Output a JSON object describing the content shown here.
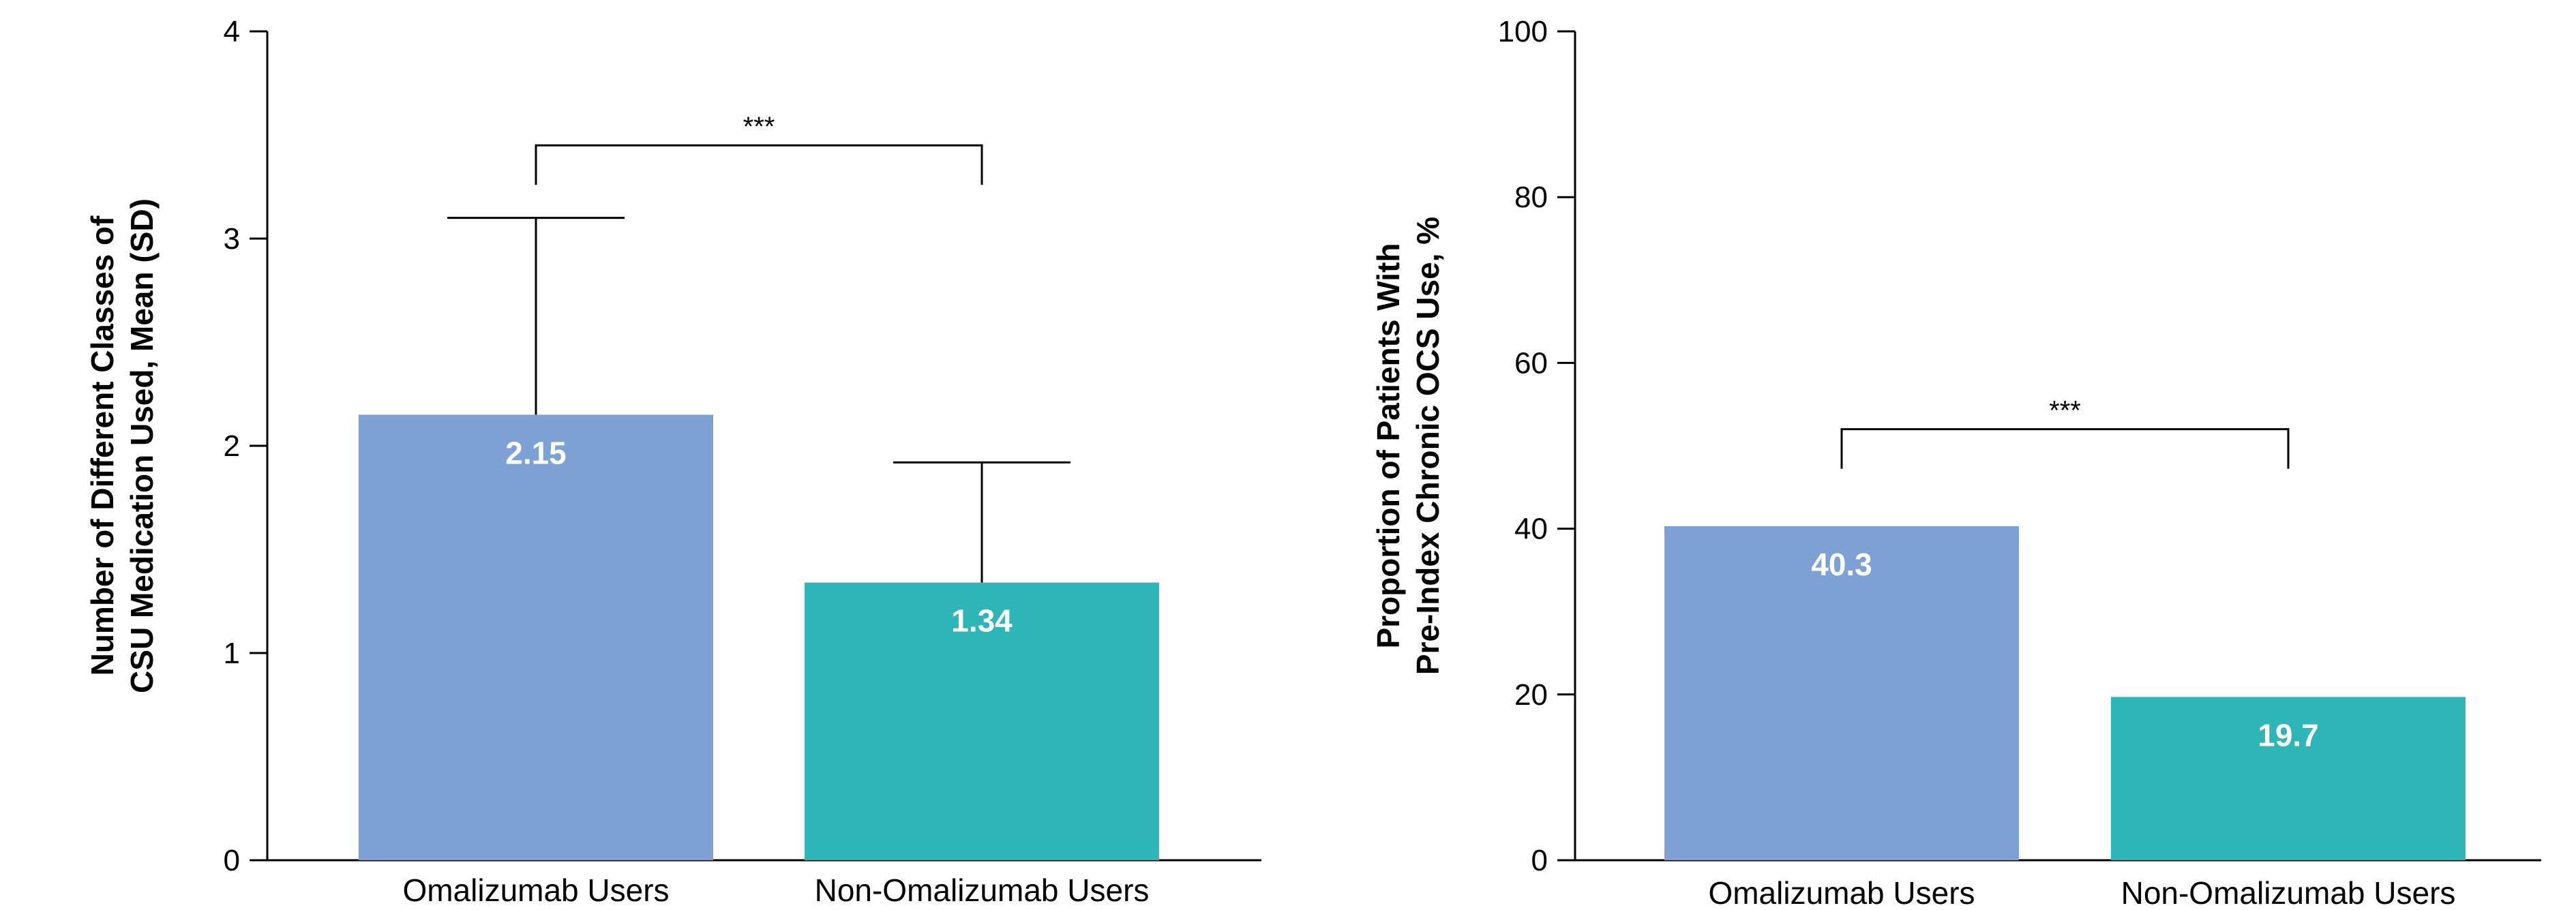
{
  "chart_data": [
    {
      "type": "bar",
      "categories": [
        "Omalizumab Users",
        "Non-Omalizumab Users"
      ],
      "values": [
        2.15,
        1.34
      ],
      "error_sd": [
        0.95,
        0.58
      ],
      "data_labels": [
        "2.15",
        "1.34"
      ],
      "colors": [
        "#7da1d4",
        "#2db5b7"
      ],
      "ylabel_lines": [
        "Number of Different Classes of",
        "CSU Medication Used, Mean (SD)"
      ],
      "ylim": [
        0,
        4
      ],
      "yticks": [
        0,
        1,
        2,
        3,
        4
      ],
      "ytick_labels": [
        "0",
        "1",
        "2",
        "3",
        "4"
      ],
      "significance": {
        "label": "***",
        "level": 3.45
      },
      "grid": false
    },
    {
      "type": "bar",
      "categories": [
        "Omalizumab Users",
        "Non-Omalizumab Users"
      ],
      "values": [
        40.3,
        19.7
      ],
      "data_labels": [
        "40.3",
        "19.7"
      ],
      "colors": [
        "#7da1d4",
        "#2db5b7"
      ],
      "ylabel_lines": [
        "Proportion of Patients With",
        "Pre-Index Chronic OCS Use, %"
      ],
      "ylim": [
        0,
        100
      ],
      "yticks": [
        0,
        20,
        40,
        60,
        80,
        100
      ],
      "ytick_labels": [
        "0",
        "20",
        "40",
        "60",
        "80",
        "100"
      ],
      "significance": {
        "label": "***",
        "level": 52
      },
      "grid": false
    }
  ]
}
